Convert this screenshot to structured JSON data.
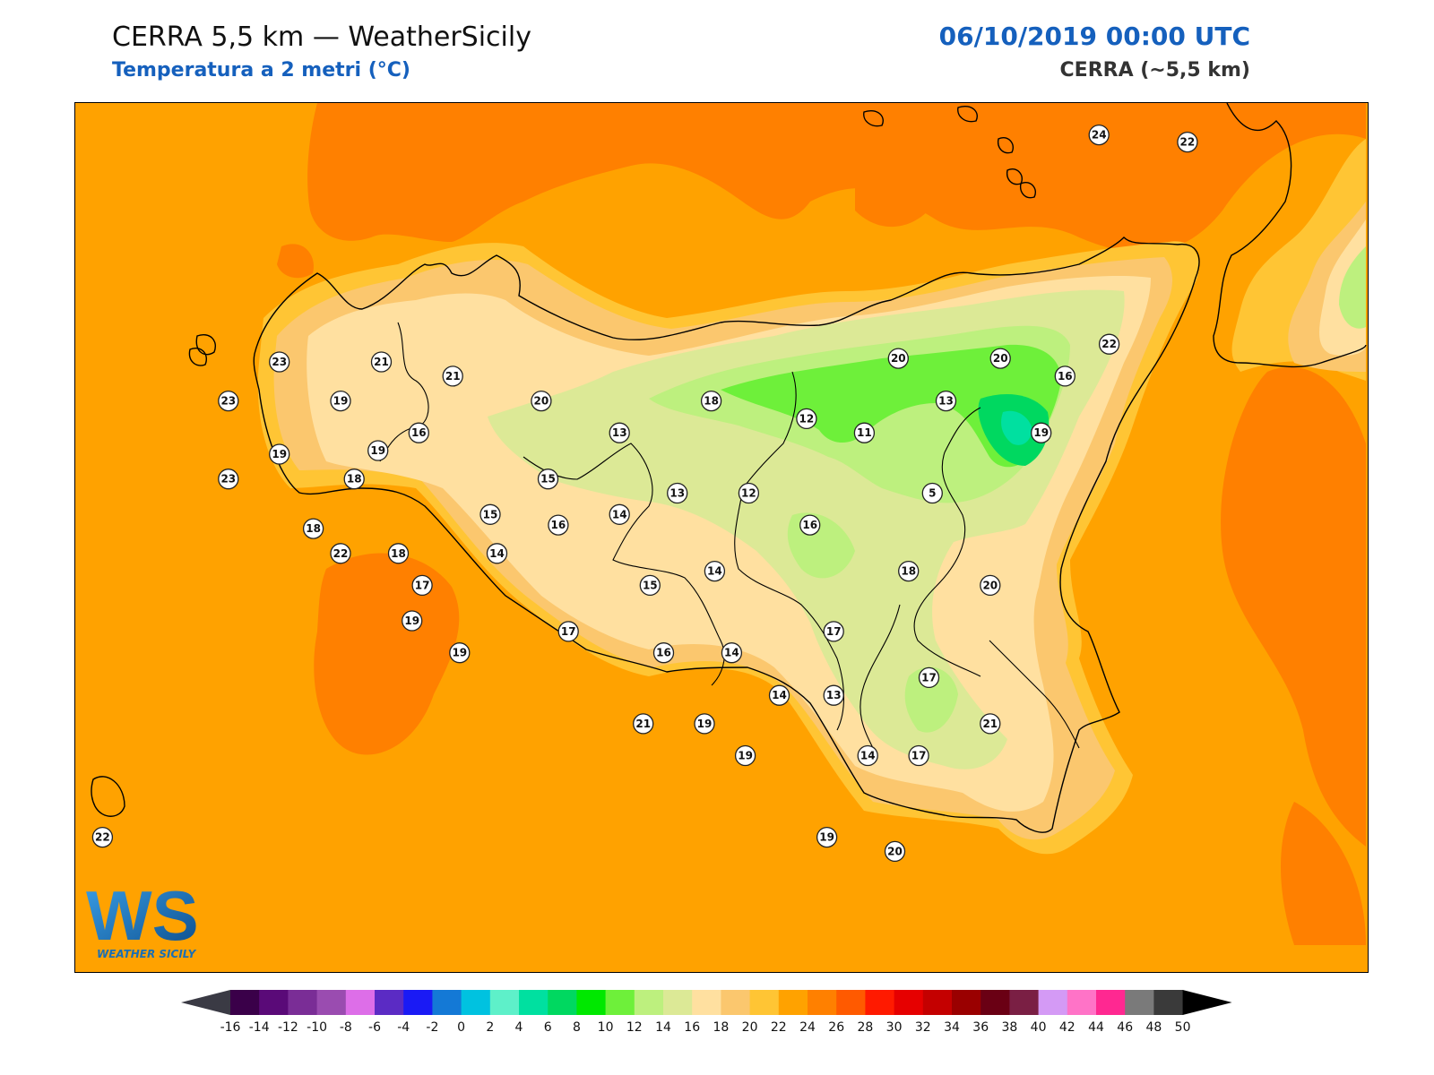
{
  "header": {
    "title": "CERRA 5,5 km — WeatherSicily",
    "subtitle": "Temperatura a 2 metri (°C)",
    "datetime": "06/10/2019 00:00 UTC",
    "model": "CERRA (~5,5 km)"
  },
  "logo": {
    "text": "WEATHER SICILY",
    "letters": "WS"
  },
  "map": {
    "sea_color": "#ffa200",
    "warm_sea_color": "#ff8000",
    "stations": [
      {
        "v": "24",
        "lon": 14.96,
        "lat": 38.81
      },
      {
        "v": "22",
        "lon": 15.22,
        "lat": 38.79
      },
      {
        "v": "23",
        "lon": 12.55,
        "lat": 38.17
      },
      {
        "v": "21",
        "lon": 12.85,
        "lat": 38.17
      },
      {
        "v": "21",
        "lon": 13.06,
        "lat": 38.13
      },
      {
        "v": "23",
        "lon": 12.4,
        "lat": 38.06
      },
      {
        "v": "19",
        "lon": 12.73,
        "lat": 38.06
      },
      {
        "v": "20",
        "lon": 13.32,
        "lat": 38.06
      },
      {
        "v": "18",
        "lon": 13.82,
        "lat": 38.06
      },
      {
        "v": "20",
        "lon": 14.37,
        "lat": 38.18
      },
      {
        "v": "20",
        "lon": 14.67,
        "lat": 38.18
      },
      {
        "v": "22",
        "lon": 14.99,
        "lat": 38.22
      },
      {
        "v": "16",
        "lon": 14.86,
        "lat": 38.13
      },
      {
        "v": "13",
        "lon": 14.51,
        "lat": 38.06
      },
      {
        "v": "12",
        "lon": 14.1,
        "lat": 38.01
      },
      {
        "v": "11",
        "lon": 14.27,
        "lat": 37.97
      },
      {
        "v": "19",
        "lon": 14.79,
        "lat": 37.97
      },
      {
        "v": "19",
        "lon": 12.55,
        "lat": 37.91
      },
      {
        "v": "16",
        "lon": 12.96,
        "lat": 37.97
      },
      {
        "v": "19",
        "lon": 12.84,
        "lat": 37.92
      },
      {
        "v": "13",
        "lon": 13.55,
        "lat": 37.97
      },
      {
        "v": "23",
        "lon": 12.4,
        "lat": 37.84
      },
      {
        "v": "18",
        "lon": 12.77,
        "lat": 37.84
      },
      {
        "v": "15",
        "lon": 13.34,
        "lat": 37.84
      },
      {
        "v": "13",
        "lon": 13.72,
        "lat": 37.8
      },
      {
        "v": "12",
        "lon": 13.93,
        "lat": 37.8
      },
      {
        "v": "5",
        "lon": 14.47,
        "lat": 37.8
      },
      {
        "v": "18",
        "lon": 12.65,
        "lat": 37.7
      },
      {
        "v": "15",
        "lon": 13.17,
        "lat": 37.74
      },
      {
        "v": "14",
        "lon": 13.55,
        "lat": 37.74
      },
      {
        "v": "16",
        "lon": 13.37,
        "lat": 37.71
      },
      {
        "v": "16",
        "lon": 14.11,
        "lat": 37.71
      },
      {
        "v": "22",
        "lon": 12.73,
        "lat": 37.63
      },
      {
        "v": "18",
        "lon": 12.9,
        "lat": 37.63
      },
      {
        "v": "14",
        "lon": 13.19,
        "lat": 37.63
      },
      {
        "v": "18",
        "lon": 14.4,
        "lat": 37.58
      },
      {
        "v": "14",
        "lon": 13.83,
        "lat": 37.58
      },
      {
        "v": "17",
        "lon": 12.97,
        "lat": 37.54
      },
      {
        "v": "15",
        "lon": 13.64,
        "lat": 37.54
      },
      {
        "v": "20",
        "lon": 14.64,
        "lat": 37.54
      },
      {
        "v": "19",
        "lon": 12.94,
        "lat": 37.44
      },
      {
        "v": "17",
        "lon": 13.4,
        "lat": 37.41
      },
      {
        "v": "17",
        "lon": 14.18,
        "lat": 37.41
      },
      {
        "v": "19",
        "lon": 13.08,
        "lat": 37.35
      },
      {
        "v": "16",
        "lon": 13.68,
        "lat": 37.35
      },
      {
        "v": "14",
        "lon": 13.88,
        "lat": 37.35
      },
      {
        "v": "17",
        "lon": 14.46,
        "lat": 37.28
      },
      {
        "v": "14",
        "lon": 14.02,
        "lat": 37.23
      },
      {
        "v": "13",
        "lon": 14.18,
        "lat": 37.23
      },
      {
        "v": "21",
        "lon": 13.62,
        "lat": 37.15
      },
      {
        "v": "19",
        "lon": 13.8,
        "lat": 37.15
      },
      {
        "v": "21",
        "lon": 14.64,
        "lat": 37.15
      },
      {
        "v": "19",
        "lon": 13.92,
        "lat": 37.06
      },
      {
        "v": "14",
        "lon": 14.28,
        "lat": 37.06
      },
      {
        "v": "17",
        "lon": 14.43,
        "lat": 37.06
      },
      {
        "v": "22",
        "lon": 12.03,
        "lat": 36.83
      },
      {
        "v": "19",
        "lon": 14.16,
        "lat": 36.83
      },
      {
        "v": "20",
        "lon": 14.36,
        "lat": 36.79
      }
    ]
  },
  "colorbar": {
    "colors": [
      "#3a0049",
      "#5a0a78",
      "#7a2d96",
      "#9a4cb0",
      "#dd6ee8",
      "#5b2bc4",
      "#1a1af5",
      "#1479d6",
      "#00c2e0",
      "#5ef0c9",
      "#00e0a0",
      "#00d860",
      "#00e800",
      "#6ef03a",
      "#bdf07e",
      "#dce996",
      "#ffe0a0",
      "#fbc76e",
      "#ffc534",
      "#ffa200",
      "#ff8000",
      "#ff5a00",
      "#ff1a00",
      "#e60000",
      "#c40000",
      "#9a0000",
      "#6a0014",
      "#7a1f44",
      "#d49af5",
      "#ff73c7",
      "#ff2891",
      "#7a7a7a",
      "#3a3a3a"
    ],
    "under_color": "#3a3a44",
    "over_color": "#000000",
    "labels": [
      "-16",
      "-14",
      "-12",
      "-10",
      "-8",
      "-6",
      "-4",
      "-2",
      "0",
      "2",
      "4",
      "6",
      "8",
      "10",
      "12",
      "14",
      "16",
      "18",
      "20",
      "22",
      "24",
      "26",
      "28",
      "30",
      "32",
      "34",
      "36",
      "38",
      "40",
      "42",
      "44",
      "46",
      "48",
      "50"
    ]
  }
}
